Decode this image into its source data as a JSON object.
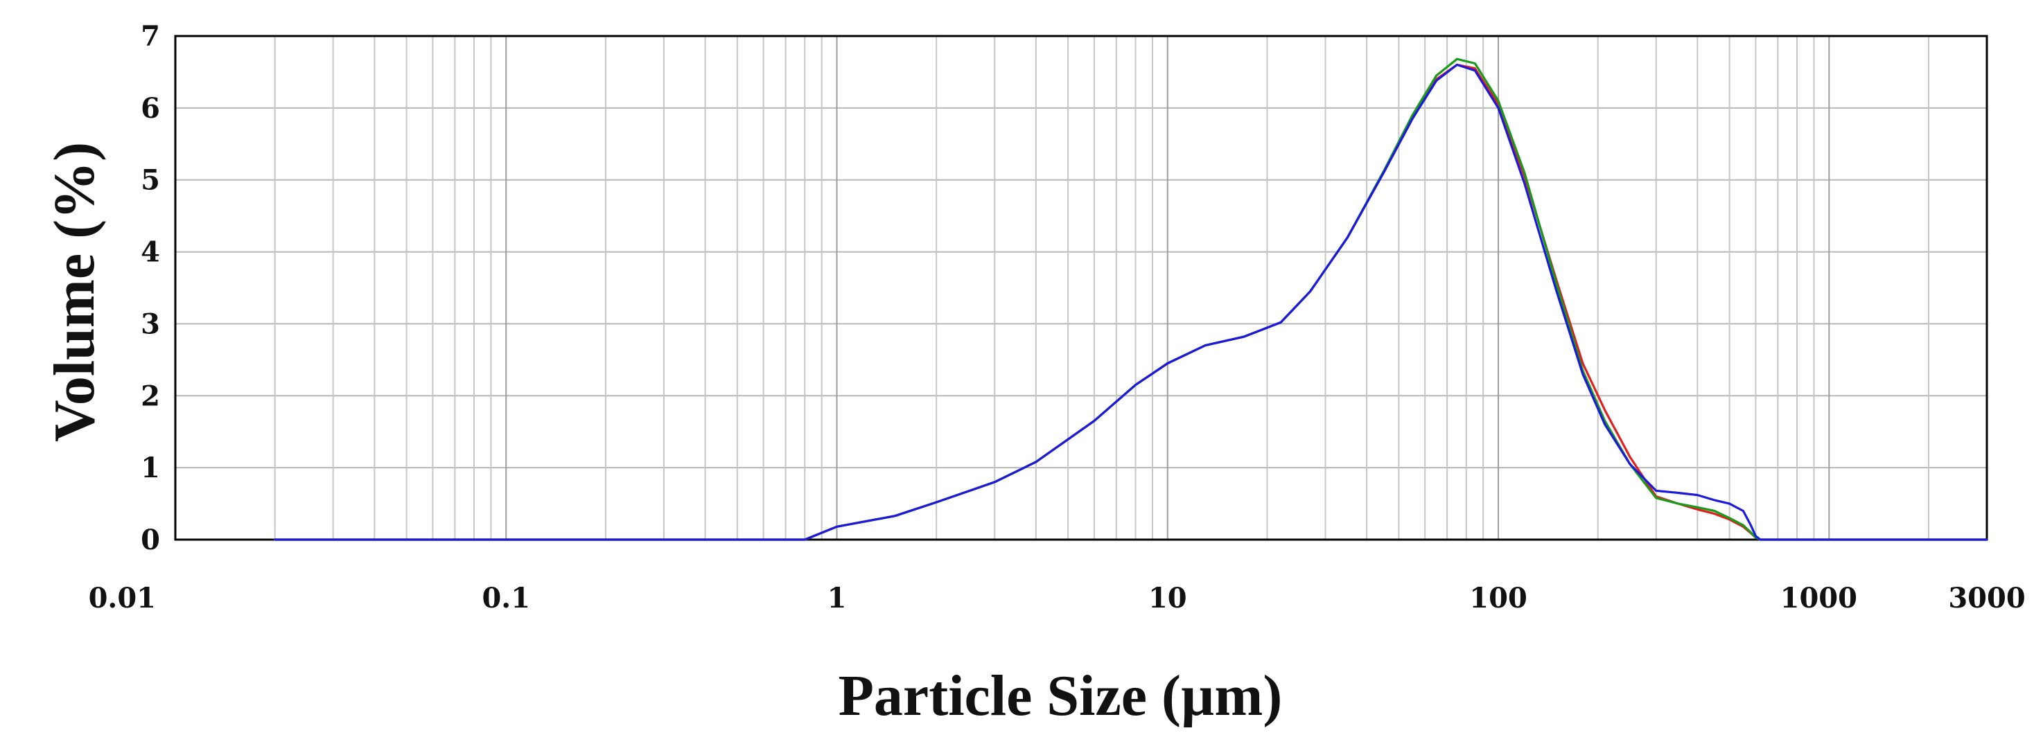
{
  "chart_data": {
    "type": "line",
    "xlabel": "Particle Size (µm)",
    "ylabel": "Volume (%)",
    "x_scale": "log",
    "xlim": [
      0.01,
      3000
    ],
    "ylim": [
      0,
      7
    ],
    "x_tick_labels": [
      "0.01",
      "0.1",
      "1",
      "10",
      "100",
      "1000",
      "3000"
    ],
    "x_ticks": [
      0.01,
      0.1,
      1,
      10,
      100,
      1000,
      3000
    ],
    "y_tick_labels": [
      "0",
      "1",
      "2",
      "3",
      "4",
      "5",
      "6",
      "7"
    ],
    "y_ticks": [
      0,
      1,
      2,
      3,
      4,
      5,
      6,
      7
    ],
    "grid": true,
    "legend": "none",
    "series": [
      {
        "color": "#e02020",
        "x": [
          0.02,
          0.8,
          1.0,
          1.5,
          2.0,
          3.0,
          4.0,
          6.0,
          8.0,
          10,
          13,
          17,
          22,
          27,
          35,
          45,
          55,
          65,
          75,
          85,
          100,
          120,
          150,
          180,
          210,
          250,
          300,
          350,
          400,
          450,
          500,
          550,
          580,
          600,
          620,
          3000
        ],
        "y": [
          0,
          0,
          0.18,
          0.33,
          0.52,
          0.8,
          1.08,
          1.65,
          2.15,
          2.45,
          2.7,
          2.82,
          3.02,
          3.45,
          4.2,
          5.1,
          5.85,
          6.4,
          6.6,
          6.55,
          6.05,
          5.05,
          3.6,
          2.45,
          1.8,
          1.15,
          0.6,
          0.5,
          0.42,
          0.36,
          0.28,
          0.18,
          0.09,
          0.03,
          0,
          0
        ]
      },
      {
        "color": "#1a9a1a",
        "x": [
          0.02,
          0.8,
          1.0,
          1.5,
          2.0,
          3.0,
          4.0,
          6.0,
          8.0,
          10,
          13,
          17,
          22,
          27,
          35,
          45,
          55,
          65,
          75,
          85,
          100,
          120,
          150,
          180,
          210,
          250,
          300,
          350,
          400,
          450,
          500,
          550,
          580,
          600,
          620,
          3000
        ],
        "y": [
          0,
          0,
          0.18,
          0.33,
          0.52,
          0.8,
          1.08,
          1.65,
          2.15,
          2.45,
          2.7,
          2.82,
          3.02,
          3.45,
          4.2,
          5.12,
          5.9,
          6.45,
          6.68,
          6.62,
          6.1,
          5.1,
          3.55,
          2.35,
          1.65,
          1.05,
          0.58,
          0.5,
          0.45,
          0.4,
          0.3,
          0.2,
          0.1,
          0.03,
          0,
          0
        ]
      },
      {
        "color": "#1a1adc",
        "x": [
          0.02,
          0.8,
          1.0,
          1.5,
          2.0,
          3.0,
          4.0,
          6.0,
          8.0,
          10,
          13,
          17,
          22,
          27,
          35,
          45,
          55,
          65,
          75,
          85,
          100,
          120,
          150,
          180,
          210,
          250,
          300,
          350,
          400,
          450,
          500,
          550,
          580,
          600,
          620,
          3000
        ],
        "y": [
          0,
          0,
          0.18,
          0.33,
          0.52,
          0.8,
          1.08,
          1.65,
          2.15,
          2.45,
          2.7,
          2.82,
          3.02,
          3.45,
          4.2,
          5.1,
          5.85,
          6.38,
          6.6,
          6.52,
          6.0,
          4.95,
          3.45,
          2.3,
          1.6,
          1.05,
          0.68,
          0.65,
          0.62,
          0.55,
          0.5,
          0.4,
          0.2,
          0.05,
          0,
          0
        ]
      }
    ]
  }
}
